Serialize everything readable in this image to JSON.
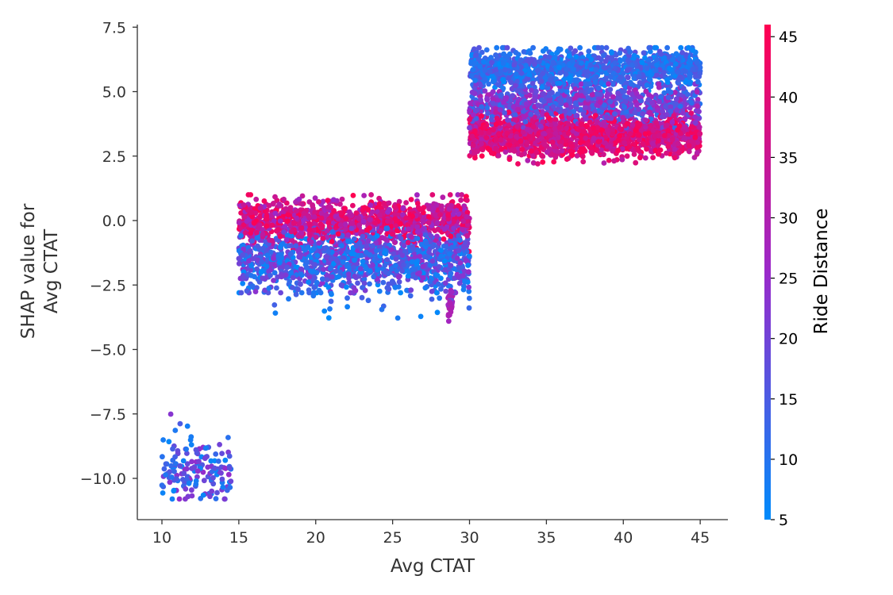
{
  "chart_data": {
    "type": "scatter",
    "xlabel": "Avg CTAT",
    "ylabel": [
      "SHAP value for",
      "Avg CTAT"
    ],
    "xlim": [
      8.4,
      46.8
    ],
    "ylim": [
      -11.6,
      7.6
    ],
    "x_ticks": [
      10,
      15,
      20,
      25,
      30,
      35,
      40,
      45
    ],
    "y_ticks": [
      7.5,
      5.0,
      2.5,
      0.0,
      -2.5,
      -5.0,
      -7.5,
      -10.0
    ],
    "y_tick_labels": [
      "7.5",
      "5.0",
      "2.5",
      "0.0",
      "−2.5",
      "−5.0",
      "−7.5",
      "−10.0"
    ],
    "colorbar": {
      "label": "Ride Distance",
      "min": 5,
      "max": 46,
      "ticks": [
        5,
        10,
        15,
        20,
        25,
        30,
        35,
        40,
        45
      ],
      "colors": [
        "#008bfb",
        "#ff0051"
      ]
    },
    "grid": false,
    "legend": "none",
    "clusters": [
      {
        "x_range": [
          10,
          14.5
        ],
        "y_mean": -9.7,
        "y_spread": 0.7,
        "y_min": -10.8,
        "y_max": -7.4,
        "color_range": [
          5,
          25
        ],
        "count": 160
      },
      {
        "x_range": [
          15,
          30
        ],
        "y_mean": 0.0,
        "y_spread": 0.4,
        "y_min": -1.2,
        "y_max": 1.0,
        "color_range": [
          25,
          46
        ],
        "count": 1100
      },
      {
        "x_range": [
          15,
          30
        ],
        "y_mean": -1.5,
        "y_spread": 0.6,
        "y_min": -2.8,
        "y_max": -0.3,
        "color_range": [
          5,
          25
        ],
        "count": 1300
      },
      {
        "x_range": [
          15,
          30
        ],
        "y_mean": -3.1,
        "y_spread": 0.4,
        "y_min": -4.1,
        "y_max": -2.6,
        "color_range": [
          5,
          15
        ],
        "count": 40
      },
      {
        "x_range": [
          28.6,
          28.9
        ],
        "y_mean": -3.3,
        "y_spread": 0.3,
        "y_min": -3.9,
        "y_max": -2.6,
        "color_range": [
          25,
          30
        ],
        "count": 30
      },
      {
        "x_range": [
          30,
          45
        ],
        "y_mean": 3.3,
        "y_spread": 0.4,
        "y_min": 2.2,
        "y_max": 4.2,
        "color_range": [
          30,
          46
        ],
        "count": 1500
      },
      {
        "x_range": [
          30,
          45
        ],
        "y_mean": 4.5,
        "y_spread": 0.4,
        "y_min": 3.6,
        "y_max": 5.3,
        "color_range": [
          10,
          30
        ],
        "count": 900
      },
      {
        "x_range": [
          30,
          45
        ],
        "y_mean": 5.9,
        "y_spread": 0.35,
        "y_min": 5.0,
        "y_max": 6.7,
        "color_range": [
          5,
          18
        ],
        "count": 1200
      }
    ]
  }
}
